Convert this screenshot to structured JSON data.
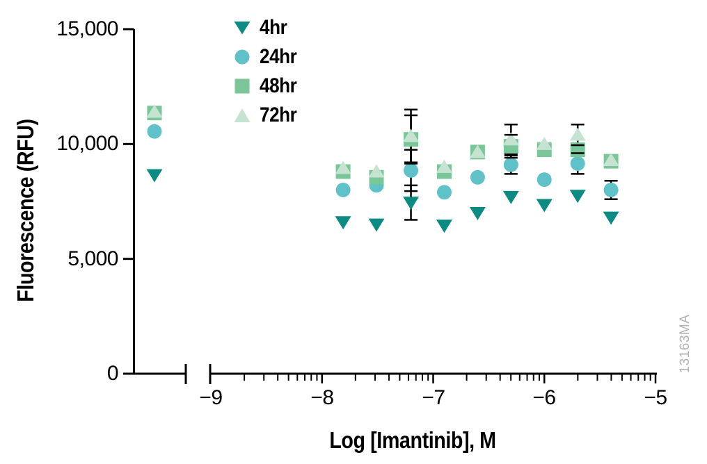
{
  "figure": {
    "watermark": "13163MA",
    "watermark_color": "#b2b2b2",
    "background": "#ffffff",
    "axis_color": "#000000"
  },
  "chart_data": {
    "type": "scatter",
    "title": "",
    "xlabel": "Log [Imantinib], M",
    "ylabel": "Fluorescence (RFU)",
    "legend_position": "top-left-inside",
    "x_axis": {
      "scale": "log",
      "range": [
        -9,
        -5
      ],
      "tick_values": [
        -9,
        -8,
        -7,
        -6,
        -5
      ],
      "tick_labels": [
        "−9",
        "−8",
        "−7",
        "−6",
        "−5"
      ],
      "minor_ticks": "log subdivisions 2-9 per decade",
      "break_before_minus9": true
    },
    "y_axis": {
      "range": [
        0,
        15000
      ],
      "tick_values": [
        0,
        5000,
        10000,
        15000
      ],
      "tick_labels": [
        "0",
        "5,000",
        "10,000",
        "15,000"
      ]
    },
    "control_point_left_of_break": true,
    "x": [
      -7.81,
      -7.51,
      -7.2,
      -6.9,
      -6.6,
      -6.3,
      -6.0,
      -5.7,
      -5.4
    ],
    "series": [
      {
        "name": "4hr",
        "marker": "triangle-down",
        "color": "#0d8b83",
        "control_y": 8650,
        "y": [
          6600,
          6500,
          7450,
          6450,
          7000,
          7700,
          7350,
          7750,
          6800
        ],
        "y_err": [
          0,
          0,
          750,
          0,
          0,
          0,
          0,
          0,
          0
        ]
      },
      {
        "name": "24hr",
        "marker": "circle",
        "color": "#61c1c9",
        "control_y": 10550,
        "y": [
          8000,
          8200,
          8850,
          7900,
          8550,
          9100,
          8450,
          9150,
          8000
        ],
        "y_err": [
          0,
          0,
          900,
          0,
          0,
          400,
          0,
          450,
          400
        ]
      },
      {
        "name": "48hr",
        "marker": "square",
        "color": "#7ac699",
        "control_y": 11350,
        "y": [
          8800,
          8550,
          10200,
          8800,
          9650,
          9900,
          9750,
          9750,
          9250
        ],
        "y_err": [
          0,
          0,
          1050,
          0,
          0,
          500,
          0,
          0,
          0
        ]
      },
      {
        "name": "72hr",
        "marker": "triangle-up",
        "color": "#c6e3d1",
        "control_y": 11400,
        "y": [
          8950,
          8800,
          10350,
          9000,
          9650,
          10200,
          10000,
          10400,
          9300
        ],
        "y_err": [
          0,
          0,
          1150,
          0,
          0,
          650,
          0,
          450,
          0
        ]
      }
    ]
  }
}
